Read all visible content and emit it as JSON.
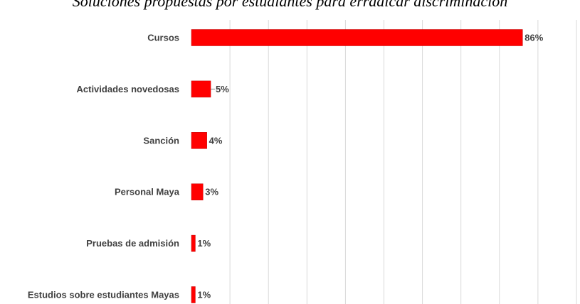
{
  "chart_data": {
    "type": "bar",
    "orientation": "horizontal",
    "title": "Soluciones propuestas por estudiantes para erradicar discriminación",
    "categories": [
      "Cursos",
      "Actividades novedosas",
      "Sanción",
      "Personal Maya",
      "Pruebas de admisión",
      "Estudios sobre estudiantes Mayas"
    ],
    "values": [
      86,
      5,
      4,
      3,
      1,
      1
    ],
    "data_labels": [
      "86%",
      "5%",
      "4%",
      "3%",
      "1%",
      "1%"
    ],
    "xlim": [
      0,
      100
    ],
    "grid": true,
    "legend": "none",
    "bar_color": "#ff0000",
    "bar_edge_color": "#c00000",
    "grid_color": "#d9d9d9"
  }
}
